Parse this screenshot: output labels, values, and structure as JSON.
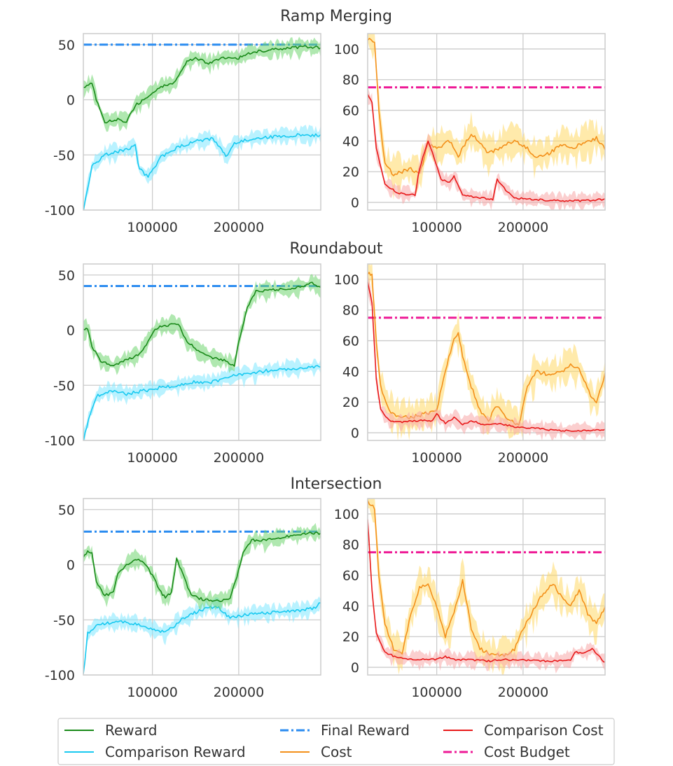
{
  "colors": {
    "reward": "#1a8a1a",
    "reward_band": "#6fd66f",
    "comparison_reward": "#19c9f0",
    "comparison_reward_band": "#7fe8ff",
    "final_reward": "#2b8cf0",
    "cost": "#f3901a",
    "cost_band": "#ffd966",
    "comparison_cost": "#e8191a",
    "comparison_cost_band": "#f7a8a8",
    "cost_budget": "#ee1a96",
    "grid": "#cccccc",
    "axes": "#cccccc"
  },
  "legend": {
    "reward": "Reward",
    "final_reward": "Final Reward",
    "comparison_cost": "Comparison Cost",
    "comparison_reward": "Comparison Reward",
    "cost": "Cost",
    "cost_budget": "Cost Budget"
  },
  "chart_data": [
    {
      "type": "line",
      "title": "Ramp Merging",
      "xlim": [
        20000,
        295000
      ],
      "xticks": [
        100000,
        200000
      ],
      "xtick_labels": [
        "100000",
        "200000"
      ],
      "reward_panel": {
        "ylim": [
          -100,
          60
        ],
        "yticks": [
          50,
          0,
          -50,
          -100
        ],
        "ytick_labels": [
          "50",
          "0",
          "-50",
          "-100"
        ],
        "final_reward": 50,
        "reward": [
          [
            20000,
            10
          ],
          [
            30000,
            15
          ],
          [
            35000,
            0
          ],
          [
            45000,
            -20
          ],
          [
            60000,
            -18
          ],
          [
            70000,
            -20
          ],
          [
            80000,
            -5
          ],
          [
            100000,
            5
          ],
          [
            110000,
            12
          ],
          [
            125000,
            15
          ],
          [
            140000,
            35
          ],
          [
            150000,
            38
          ],
          [
            165000,
            33
          ],
          [
            180000,
            38
          ],
          [
            200000,
            38
          ],
          [
            215000,
            43
          ],
          [
            235000,
            45
          ],
          [
            260000,
            47
          ],
          [
            280000,
            48
          ],
          [
            295000,
            47
          ]
        ],
        "comparison_reward": [
          [
            20000,
            -100
          ],
          [
            30000,
            -60
          ],
          [
            45000,
            -50
          ],
          [
            70000,
            -45
          ],
          [
            80000,
            -42
          ],
          [
            85000,
            -63
          ],
          [
            95000,
            -70
          ],
          [
            110000,
            -52
          ],
          [
            130000,
            -43
          ],
          [
            150000,
            -38
          ],
          [
            170000,
            -35
          ],
          [
            180000,
            -45
          ],
          [
            185000,
            -52
          ],
          [
            195000,
            -40
          ],
          [
            215000,
            -35
          ],
          [
            245000,
            -33
          ],
          [
            270000,
            -32
          ],
          [
            295000,
            -32
          ]
        ]
      },
      "cost_panel": {
        "ylim": [
          -5,
          110
        ],
        "yticks": [
          100,
          80,
          60,
          40,
          20,
          0
        ],
        "ytick_labels": [
          "100",
          "80",
          "60",
          "40",
          "20",
          "0"
        ],
        "cost_budget": 75,
        "cost": [
          [
            20000,
            107
          ],
          [
            28000,
            105
          ],
          [
            33000,
            60
          ],
          [
            40000,
            25
          ],
          [
            50000,
            18
          ],
          [
            60000,
            20
          ],
          [
            70000,
            22
          ],
          [
            80000,
            18
          ],
          [
            90000,
            38
          ],
          [
            100000,
            35
          ],
          [
            115000,
            40
          ],
          [
            125000,
            30
          ],
          [
            140000,
            45
          ],
          [
            150000,
            38
          ],
          [
            160000,
            32
          ],
          [
            175000,
            36
          ],
          [
            190000,
            40
          ],
          [
            205000,
            35
          ],
          [
            215000,
            30
          ],
          [
            230000,
            32
          ],
          [
            245000,
            38
          ],
          [
            260000,
            36
          ],
          [
            275000,
            40
          ],
          [
            285000,
            42
          ],
          [
            295000,
            35
          ]
        ],
        "comparison_cost": [
          [
            20000,
            70
          ],
          [
            25000,
            65
          ],
          [
            30000,
            35
          ],
          [
            40000,
            12
          ],
          [
            55000,
            6
          ],
          [
            70000,
            5
          ],
          [
            75000,
            5
          ],
          [
            80000,
            22
          ],
          [
            90000,
            40
          ],
          [
            95000,
            32
          ],
          [
            105000,
            15
          ],
          [
            115000,
            13
          ],
          [
            120000,
            17
          ],
          [
            130000,
            5
          ],
          [
            150000,
            3
          ],
          [
            165000,
            2
          ],
          [
            170000,
            15
          ],
          [
            180000,
            8
          ],
          [
            190000,
            3
          ],
          [
            210000,
            2
          ],
          [
            240000,
            1
          ],
          [
            270000,
            1
          ],
          [
            295000,
            2
          ]
        ]
      }
    },
    {
      "type": "line",
      "title": "Roundabout",
      "xlim": [
        20000,
        295000
      ],
      "xticks": [
        100000,
        200000
      ],
      "xtick_labels": [
        "100000",
        "200000"
      ],
      "reward_panel": {
        "ylim": [
          -100,
          60
        ],
        "yticks": [
          50,
          0,
          -50,
          -100
        ],
        "ytick_labels": [
          "50",
          "0",
          "-50",
          "-100"
        ],
        "final_reward": 40,
        "reward": [
          [
            20000,
            0
          ],
          [
            25000,
            2
          ],
          [
            30000,
            -15
          ],
          [
            40000,
            -28
          ],
          [
            55000,
            -32
          ],
          [
            70000,
            -27
          ],
          [
            85000,
            -22
          ],
          [
            95000,
            -10
          ],
          [
            105000,
            2
          ],
          [
            120000,
            5
          ],
          [
            130000,
            5
          ],
          [
            140000,
            -10
          ],
          [
            155000,
            -20
          ],
          [
            170000,
            -25
          ],
          [
            185000,
            -28
          ],
          [
            195000,
            -32
          ],
          [
            200000,
            -10
          ],
          [
            210000,
            20
          ],
          [
            220000,
            35
          ],
          [
            240000,
            37
          ],
          [
            260000,
            37
          ],
          [
            275000,
            40
          ],
          [
            285000,
            43
          ],
          [
            295000,
            38
          ]
        ],
        "comparison_reward": [
          [
            20000,
            -100
          ],
          [
            28000,
            -75
          ],
          [
            35000,
            -60
          ],
          [
            50000,
            -55
          ],
          [
            70000,
            -58
          ],
          [
            90000,
            -55
          ],
          [
            110000,
            -52
          ],
          [
            130000,
            -50
          ],
          [
            150000,
            -47
          ],
          [
            170000,
            -47
          ],
          [
            190000,
            -42
          ],
          [
            210000,
            -40
          ],
          [
            230000,
            -37
          ],
          [
            255000,
            -35
          ],
          [
            275000,
            -34
          ],
          [
            295000,
            -33
          ]
        ]
      },
      "cost_panel": {
        "ylim": [
          -5,
          110
        ],
        "yticks": [
          100,
          80,
          60,
          40,
          20,
          0
        ],
        "ytick_labels": [
          "100",
          "80",
          "60",
          "40",
          "20",
          "0"
        ],
        "cost_budget": 75,
        "cost": [
          [
            20000,
            104
          ],
          [
            25000,
            103
          ],
          [
            30000,
            60
          ],
          [
            35000,
            30
          ],
          [
            45000,
            15
          ],
          [
            55000,
            10
          ],
          [
            70000,
            10
          ],
          [
            85000,
            12
          ],
          [
            100000,
            15
          ],
          [
            110000,
            40
          ],
          [
            120000,
            62
          ],
          [
            125000,
            65
          ],
          [
            130000,
            50
          ],
          [
            140000,
            30
          ],
          [
            150000,
            15
          ],
          [
            160000,
            8
          ],
          [
            170000,
            18
          ],
          [
            180000,
            10
          ],
          [
            195000,
            4
          ],
          [
            205000,
            30
          ],
          [
            215000,
            40
          ],
          [
            230000,
            38
          ],
          [
            245000,
            40
          ],
          [
            255000,
            45
          ],
          [
            265000,
            42
          ],
          [
            280000,
            22
          ],
          [
            285000,
            20
          ],
          [
            295000,
            38
          ]
        ],
        "comparison_cost": [
          [
            20000,
            98
          ],
          [
            25000,
            85
          ],
          [
            30000,
            35
          ],
          [
            35000,
            15
          ],
          [
            45000,
            8
          ],
          [
            60000,
            7
          ],
          [
            80000,
            8
          ],
          [
            95000,
            8
          ],
          [
            100000,
            12
          ],
          [
            110000,
            6
          ],
          [
            120000,
            10
          ],
          [
            130000,
            5
          ],
          [
            140000,
            8
          ],
          [
            155000,
            5
          ],
          [
            170000,
            6
          ],
          [
            190000,
            4
          ],
          [
            210000,
            3
          ],
          [
            230000,
            2
          ],
          [
            260000,
            1
          ],
          [
            295000,
            2
          ]
        ]
      }
    },
    {
      "type": "line",
      "title": "Intersection",
      "xlim": [
        20000,
        295000
      ],
      "xticks": [
        100000,
        200000
      ],
      "xtick_labels": [
        "100000",
        "200000"
      ],
      "reward_panel": {
        "ylim": [
          -100,
          60
        ],
        "yticks": [
          50,
          0,
          -50,
          -100
        ],
        "ytick_labels": [
          "50",
          "0",
          "-50",
          "-100"
        ],
        "final_reward": 30,
        "reward": [
          [
            20000,
            8
          ],
          [
            25000,
            12
          ],
          [
            30000,
            10
          ],
          [
            35000,
            -15
          ],
          [
            45000,
            -28
          ],
          [
            55000,
            -25
          ],
          [
            60000,
            -8
          ],
          [
            70000,
            0
          ],
          [
            80000,
            5
          ],
          [
            90000,
            2
          ],
          [
            100000,
            -10
          ],
          [
            110000,
            -25
          ],
          [
            115000,
            -30
          ],
          [
            122000,
            -25
          ],
          [
            128000,
            5
          ],
          [
            135000,
            -8
          ],
          [
            145000,
            -28
          ],
          [
            160000,
            -32
          ],
          [
            175000,
            -33
          ],
          [
            190000,
            -30
          ],
          [
            198000,
            -10
          ],
          [
            205000,
            10
          ],
          [
            215000,
            22
          ],
          [
            230000,
            22
          ],
          [
            250000,
            25
          ],
          [
            270000,
            27
          ],
          [
            285000,
            29
          ],
          [
            295000,
            28
          ]
        ],
        "comparison_reward": [
          [
            20000,
            -100
          ],
          [
            25000,
            -62
          ],
          [
            35000,
            -55
          ],
          [
            50000,
            -53
          ],
          [
            70000,
            -52
          ],
          [
            90000,
            -55
          ],
          [
            100000,
            -58
          ],
          [
            115000,
            -62
          ],
          [
            130000,
            -52
          ],
          [
            145000,
            -45
          ],
          [
            160000,
            -40
          ],
          [
            175000,
            -38
          ],
          [
            190000,
            -48
          ],
          [
            205000,
            -46
          ],
          [
            225000,
            -44
          ],
          [
            245000,
            -43
          ],
          [
            265000,
            -42
          ],
          [
            285000,
            -40
          ],
          [
            295000,
            -35
          ]
        ]
      },
      "cost_panel": {
        "ylim": [
          -5,
          110
        ],
        "yticks": [
          100,
          80,
          60,
          40,
          20,
          0
        ],
        "ytick_labels": [
          "100",
          "80",
          "60",
          "40",
          "20",
          "0"
        ],
        "cost_budget": 75,
        "cost": [
          [
            20000,
            108
          ],
          [
            28000,
            104
          ],
          [
            33000,
            60
          ],
          [
            40000,
            28
          ],
          [
            50000,
            12
          ],
          [
            60000,
            8
          ],
          [
            70000,
            35
          ],
          [
            80000,
            52
          ],
          [
            90000,
            55
          ],
          [
            100000,
            40
          ],
          [
            110000,
            20
          ],
          [
            120000,
            35
          ],
          [
            130000,
            57
          ],
          [
            140000,
            25
          ],
          [
            150000,
            12
          ],
          [
            165000,
            8
          ],
          [
            180000,
            8
          ],
          [
            190000,
            12
          ],
          [
            200000,
            25
          ],
          [
            210000,
            35
          ],
          [
            220000,
            45
          ],
          [
            235000,
            55
          ],
          [
            245000,
            45
          ],
          [
            255000,
            40
          ],
          [
            265000,
            50
          ],
          [
            275000,
            35
          ],
          [
            285000,
            28
          ],
          [
            295000,
            40
          ]
        ],
        "comparison_cost": [
          [
            20000,
            97
          ],
          [
            25000,
            50
          ],
          [
            30000,
            22
          ],
          [
            40000,
            10
          ],
          [
            55000,
            6
          ],
          [
            80000,
            5
          ],
          [
            100000,
            5
          ],
          [
            110000,
            7
          ],
          [
            120000,
            5
          ],
          [
            140000,
            5
          ],
          [
            160000,
            4
          ],
          [
            180000,
            5
          ],
          [
            200000,
            5
          ],
          [
            220000,
            4
          ],
          [
            240000,
            4
          ],
          [
            255000,
            5
          ],
          [
            260000,
            10
          ],
          [
            270000,
            9
          ],
          [
            280000,
            12
          ],
          [
            295000,
            3
          ]
        ]
      }
    }
  ]
}
